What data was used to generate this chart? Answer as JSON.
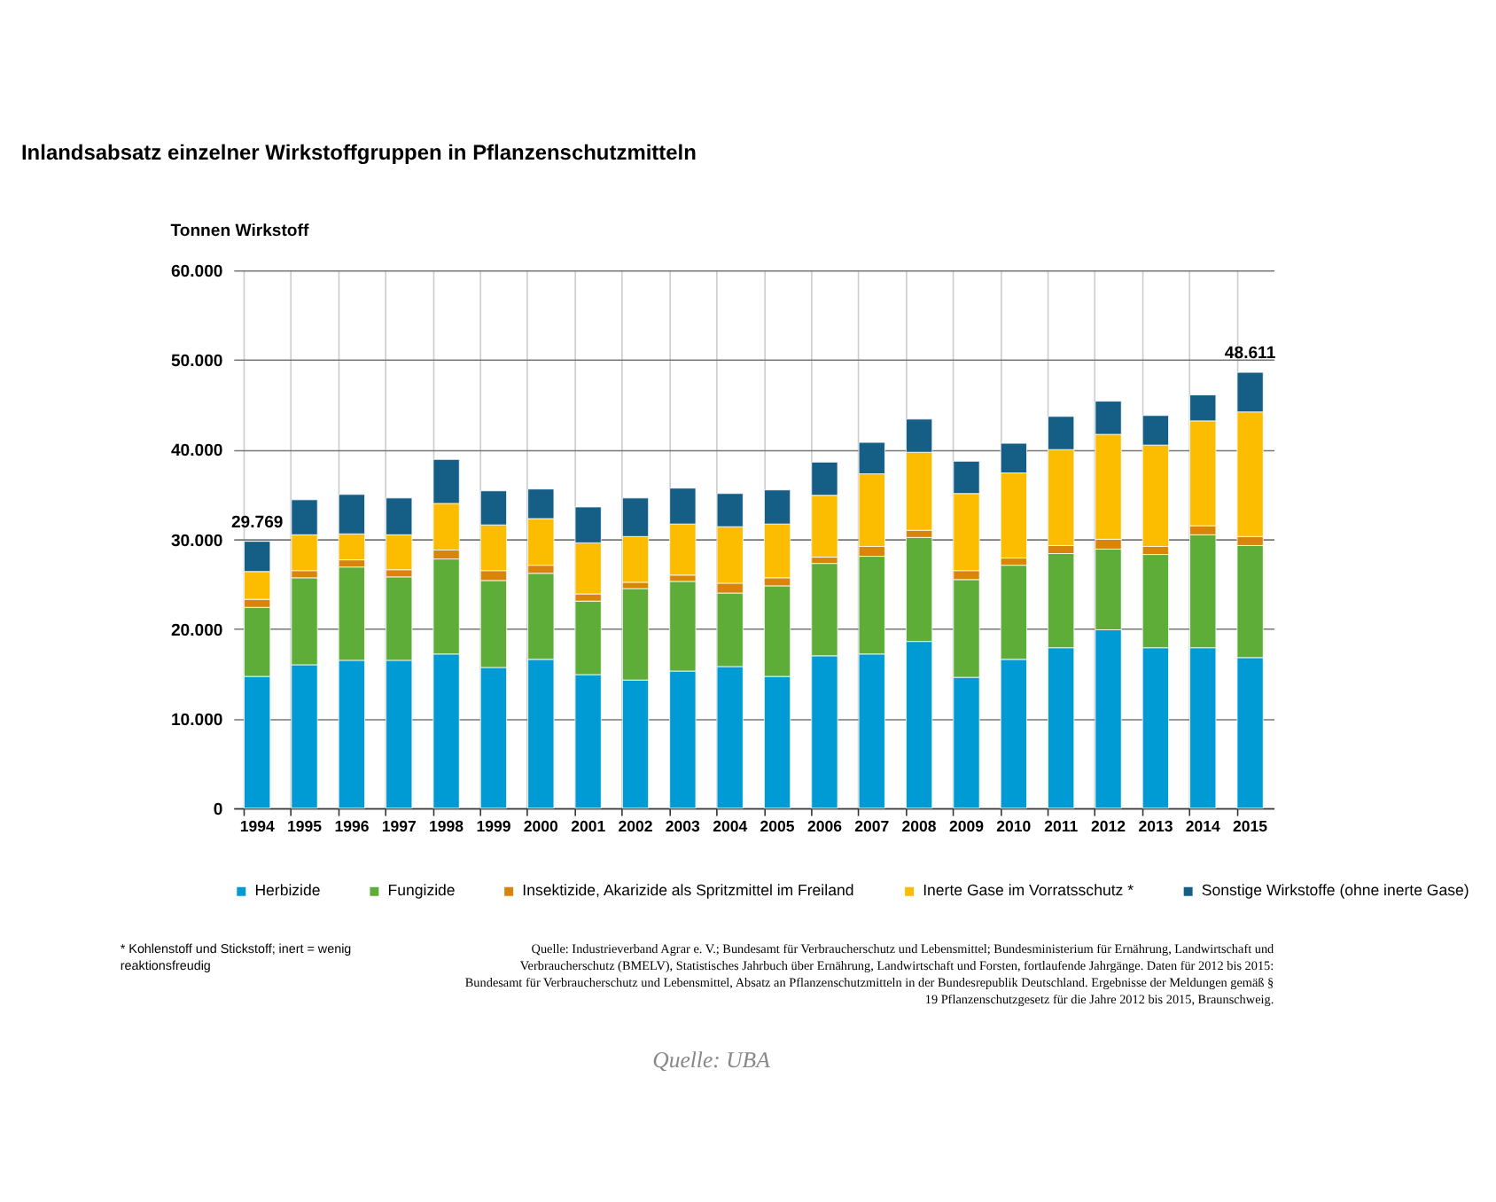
{
  "chart_data": {
    "type": "bar",
    "stacked": true,
    "title": "Inlandsabsatz einzelner Wirkstoffgruppen in Pflanzenschutzmitteln",
    "ylabel": "Tonnen Wirkstoff",
    "categories": [
      "1994",
      "1995",
      "1996",
      "1997",
      "1998",
      "1999",
      "2000",
      "2001",
      "2002",
      "2003",
      "2004",
      "2005",
      "2006",
      "2007",
      "2008",
      "2009",
      "2010",
      "2011",
      "2012",
      "2013",
      "2014",
      "2015"
    ],
    "series": [
      {
        "name": "Herbizide",
        "color": "#009bd5",
        "values": [
          14700,
          16000,
          16500,
          16500,
          17200,
          15700,
          16600,
          14900,
          14300,
          15300,
          15800,
          14700,
          17000,
          17200,
          18600,
          14600,
          16600,
          17900,
          19900,
          17900,
          17900,
          16800
        ]
      },
      {
        "name": "Fungizide",
        "color": "#5dad38",
        "values": [
          7700,
          9700,
          10400,
          9300,
          10600,
          9700,
          9600,
          8200,
          10200,
          10000,
          8200,
          10100,
          10300,
          10900,
          11600,
          10900,
          10500,
          10500,
          9000,
          10400,
          12600,
          12500
        ]
      },
      {
        "name": "Insektizide, Akarizide als Spritzmittel im Freiland",
        "color": "#d9840b",
        "values": [
          900,
          800,
          800,
          800,
          1000,
          1100,
          900,
          800,
          700,
          700,
          1100,
          900,
          700,
          1100,
          800,
          1000,
          800,
          900,
          1100,
          900,
          1000,
          1000
        ]
      },
      {
        "name": "Inerte Gase im Vorratsschutz *",
        "color": "#fcbc00",
        "values": [
          3100,
          4000,
          2900,
          3900,
          5200,
          5100,
          5200,
          5700,
          5100,
          5700,
          6300,
          6000,
          6900,
          8100,
          8700,
          8600,
          9500,
          10700,
          11700,
          11300,
          11700,
          13900
        ]
      },
      {
        "name": "Sonstige  Wirkstoffe (ohne inerte Gase)",
        "color": "#155e86",
        "values": [
          3369,
          3900,
          4400,
          4100,
          4900,
          3800,
          3300,
          4000,
          4300,
          4000,
          3700,
          3800,
          3700,
          3500,
          3700,
          3600,
          3300,
          3700,
          3700,
          3300,
          2900,
          4411
        ]
      }
    ],
    "totals": [
      "29.769",
      null,
      null,
      null,
      null,
      null,
      null,
      null,
      null,
      null,
      null,
      null,
      null,
      null,
      null,
      null,
      null,
      null,
      null,
      null,
      null,
      "48.611"
    ],
    "ylim": [
      0,
      60000
    ],
    "yticks": [
      {
        "value": 0,
        "label": "0"
      },
      {
        "value": 10000,
        "label": "10.000"
      },
      {
        "value": 20000,
        "label": "20.000"
      },
      {
        "value": 30000,
        "label": "30.000"
      },
      {
        "value": 40000,
        "label": "40.000"
      },
      {
        "value": 50000,
        "label": "50.000"
      },
      {
        "value": 60000,
        "label": "60.000"
      }
    ],
    "grid": true,
    "legend": "bottom",
    "annotations": [
      "* Kohlenstoff und Stickstoff; inert = wenig reaktionsfreudig",
      "Quelle: Industrieverband Agrar e. V.; Bundesamt für Verbraucherschutz und Lebensmittel; Bundesministerium für Ernährung, Landwirtschaft und Verbraucherschutz (BMELV), Statistisches Jahrbuch über Ernährung, Landwirtschaft und Forsten, fortlaufende Jahrgänge. Daten für 2012 bis 2015: Bundesamt für Verbraucherschutz und Lebensmittel, Absatz an Pflanzenschutzmitteln in der Bundesrepublik Deutschland. Ergebnisse der Meldungen gemäß § 19 Pflanzenschutzgesetz für die Jahre 2012 bis 2015, Braunschweig.",
      "Quelle: UBA"
    ]
  }
}
